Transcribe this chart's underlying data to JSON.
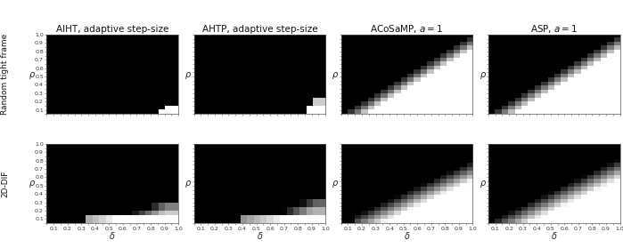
{
  "col_titles": [
    "AIHT, adaptive step-size",
    "AHTP, adaptive step-size",
    "ACoSaMP, $a = 1$",
    "ASP, $a = 1$"
  ],
  "row_labels": [
    "Random tight frame",
    "2D-DIF"
  ],
  "xlabel": "δ",
  "ylabel": "ρ",
  "n": 20,
  "title_fontsize": 7.5,
  "label_fontsize": 7,
  "tick_fontsize": 4.5,
  "row_label_fontsize": 6.5
}
